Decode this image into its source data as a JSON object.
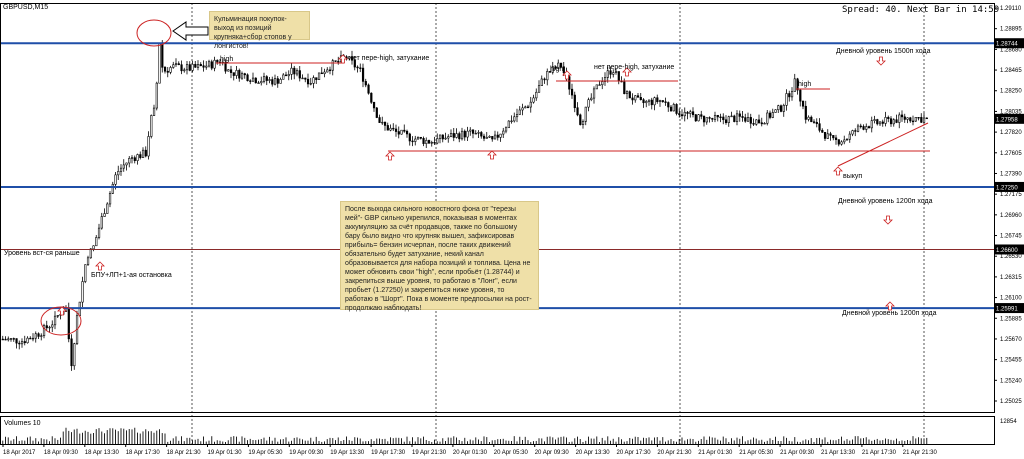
{
  "symbol_title": "GBPUSD,M15",
  "status_readout": "Spread: 40. Next Bar in 14:59",
  "colors": {
    "level": "#1f4fa8",
    "accent": "#cc2222",
    "candle": "#000000",
    "note_bg": "#efe0a8"
  },
  "notes": {
    "top": "Кульминация покупок-выход из позиций крупняка+сбор стопов у лонгистов!",
    "main": "После выхода сильного новостного фона от \"терезы мей\"- GBP сильно укрепился, показывая в моментах аккумуляцию за счёт продавцов, также по большому бару было видно что крупняк вышел, зафиксировав прибыль= бензин исчерпан, после таких движений обязательно будет затухание, некий канал образовывается для набора позиций и топлива. Цена не может обновить свои \"high\", если пробьёт (1.28744) и закрепиться выше уровня, то работаю в \"Лонг\", если пробьет (1.27250) и закрепиться ниже уровня, то работаю в \"Шорт\". Пока в моменте предпосылки на рост-продолжаю наблюдать!"
  },
  "annotations": {
    "high_1": "high",
    "no_new_high_1": "нет пере-high, затухание",
    "high_2": "high",
    "no_new_high_2": "нет пере-high, затухание",
    "high_3": "high",
    "exit": "выкуп",
    "entered_earlier": "Уровень вст-ся раньше",
    "bpu": "БПУ+ЛП+1-ая остановка",
    "level_1500": "Дневной уровень 1500п хода",
    "level_1200a": "Дневной уровень 1200п хода",
    "level_1200b": "Дневной уровень 1200п хода"
  },
  "chart_data": {
    "type": "candlestick",
    "symbol": "GBPUSD",
    "timeframe": "M15",
    "price_ticks": [
      "1.29110",
      "1.28895",
      "1.28680",
      "1.28465",
      "1.28250",
      "1.28035",
      "1.27820",
      "1.27605",
      "1.27390",
      "1.27175",
      "1.26960",
      "1.26745",
      "1.26530",
      "1.26315",
      "1.26100",
      "1.25885",
      "1.25670",
      "1.25455",
      "1.25240",
      "1.25025"
    ],
    "time_ticks": [
      "18 Apr 2017",
      "18 Apr 09:30",
      "18 Apr 13:30",
      "18 Apr 17:30",
      "18 Apr 21:30",
      "19 Apr 01:30",
      "19 Apr 05:30",
      "19 Apr 09:30",
      "19 Apr 13:30",
      "19 Apr 17:30",
      "19 Apr 21:30",
      "20 Apr 01:30",
      "20 Apr 05:30",
      "20 Apr 09:30",
      "20 Apr 13:30",
      "20 Apr 17:30",
      "20 Apr 21:30",
      "21 Apr 01:30",
      "21 Apr 05:30",
      "21 Apr 09:30",
      "21 Apr 13:30",
      "21 Apr 17:30",
      "21 Apr 21:30"
    ],
    "levels": [
      {
        "label": "1.28744",
        "price": 1.28744
      },
      {
        "label": "1.27250",
        "price": 1.2725
      },
      {
        "label": "1.26600",
        "price": 1.266
      },
      {
        "label": "1.25991",
        "price": 1.25991
      }
    ],
    "current_price_label": "1.27958",
    "current_price": 1.27958,
    "volume_label": "Volumes 10",
    "volume_max_label": "12854",
    "volume_max": 12854,
    "path_x": [
      0,
      22,
      40,
      53,
      61,
      66,
      70,
      76,
      80,
      86,
      92,
      100,
      108,
      116,
      130,
      145,
      150,
      155,
      158,
      162,
      172,
      190,
      210,
      220,
      228,
      240,
      255,
      275,
      292,
      310,
      325,
      345,
      360,
      380,
      395,
      410,
      430,
      450,
      470,
      492,
      510,
      530,
      545,
      560,
      570,
      580,
      588,
      600,
      612,
      625,
      640,
      660,
      680,
      700,
      720,
      740,
      760,
      780,
      795,
      805,
      820,
      832,
      845,
      860,
      880,
      900,
      915,
      928
    ],
    "path_y": [
      1.2567,
      1.2565,
      1.2574,
      1.2585,
      1.2597,
      1.2599,
      1.2536,
      1.2588,
      1.2615,
      1.2654,
      1.266,
      1.2689,
      1.2715,
      1.274,
      1.2755,
      1.276,
      1.2795,
      1.2808,
      1.2883,
      1.2845,
      1.285,
      1.2848,
      1.2852,
      1.2857,
      1.2845,
      1.2842,
      1.2837,
      1.2835,
      1.2845,
      1.2835,
      1.2848,
      1.286,
      1.2845,
      1.279,
      1.2782,
      1.2776,
      1.2772,
      1.2778,
      1.2781,
      1.2772,
      1.2795,
      1.2813,
      1.2842,
      1.2852,
      1.2825,
      1.2792,
      1.2812,
      1.2836,
      1.2848,
      1.2822,
      1.2812,
      1.2815,
      1.2802,
      1.2796,
      1.2795,
      1.2797,
      1.2793,
      1.2807,
      1.2835,
      1.2798,
      1.2784,
      1.2772,
      1.2775,
      1.2788,
      1.2792,
      1.2796,
      1.2797,
      1.2795
    ]
  }
}
